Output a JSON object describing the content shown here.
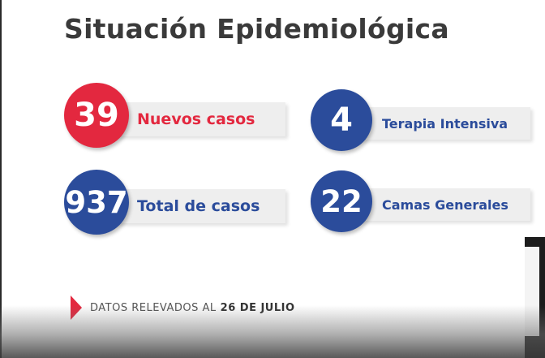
{
  "title": "Situación Epidemiológica",
  "stats": {
    "nuevos": {
      "value": "39",
      "label": "Nuevos casos"
    },
    "total": {
      "value": "937",
      "label": "Total de casos"
    },
    "terapia": {
      "value": "4",
      "label": "Terapia Intensiva"
    },
    "camas": {
      "value": "22",
      "label": "Camas Generales"
    }
  },
  "footer": {
    "text": "DATOS RELEVADOS AL",
    "date": "26 DE JULIO",
    "marker_icon": "triangle-right-icon"
  },
  "colors": {
    "red": "#e3283f",
    "blue": "#2b4c9b",
    "title": "#3a3a3a"
  }
}
